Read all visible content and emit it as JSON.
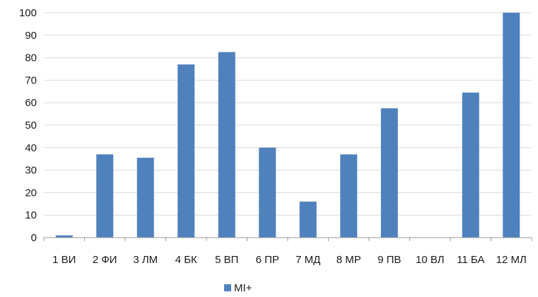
{
  "chart_data": {
    "type": "bar",
    "categories": [
      "1 ВИ",
      "2 ФИ",
      "3 ЛМ",
      "4 БК",
      "5 ВП",
      "6 ПР",
      "7 МД",
      "8 МР",
      "9 ПВ",
      "10 ВЛ",
      "11 БА",
      "12 МЛ"
    ],
    "series": [
      {
        "name": "MI+",
        "values": [
          1,
          37,
          35.5,
          77,
          82.5,
          40,
          16,
          37,
          57.5,
          0,
          64.5,
          100
        ],
        "color": "#4f81bd"
      }
    ],
    "title": "",
    "xlabel": "",
    "ylabel": "",
    "ylim": [
      0,
      100
    ],
    "yticks": [
      0,
      10,
      20,
      30,
      40,
      50,
      60,
      70,
      80,
      90,
      100
    ],
    "grid": true,
    "legend": "bottom-center"
  }
}
